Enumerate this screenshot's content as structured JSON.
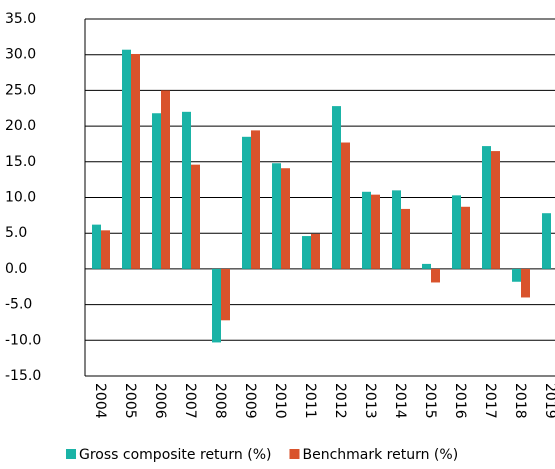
{
  "chart_data": {
    "type": "bar",
    "categories": [
      "2004",
      "2005",
      "2006",
      "2007",
      "2008",
      "2009",
      "2010",
      "2011",
      "2012",
      "2013",
      "2014",
      "2015",
      "2016",
      "2017",
      "2018",
      "2019"
    ],
    "series": [
      {
        "name": "Gross composite return (%)",
        "color": "#1ab3a6",
        "values": [
          6.2,
          30.7,
          21.8,
          22.0,
          -10.3,
          18.5,
          14.8,
          4.6,
          22.8,
          10.8,
          11.0,
          0.7,
          10.3,
          17.2,
          -1.8,
          7.8
        ]
      },
      {
        "name": "Benchmark return (%)",
        "color": "#d9532c",
        "values": [
          5.4,
          30.1,
          25.0,
          14.6,
          -7.2,
          19.4,
          14.1,
          4.9,
          17.7,
          10.4,
          8.4,
          -1.9,
          8.7,
          16.5,
          -4.0,
          null
        ]
      }
    ],
    "ylim": [
      -15,
      35
    ],
    "yticks": [
      {
        "value": -15,
        "label": "-15.0"
      },
      {
        "value": -10,
        "label": "-10.0"
      },
      {
        "value": -5,
        "label": "-5.0"
      },
      {
        "value": 0,
        "label": "0.0"
      },
      {
        "value": 5,
        "label": "5.0"
      },
      {
        "value": 10,
        "label": "10.0"
      },
      {
        "value": 15,
        "label": "15.0"
      },
      {
        "value": 20,
        "label": "20.0"
      },
      {
        "value": 25,
        "label": "25.0"
      },
      {
        "value": 30,
        "label": "30.0"
      },
      {
        "value": 35,
        "label": "35.0"
      }
    ],
    "grid": true,
    "legend": "bottom"
  }
}
